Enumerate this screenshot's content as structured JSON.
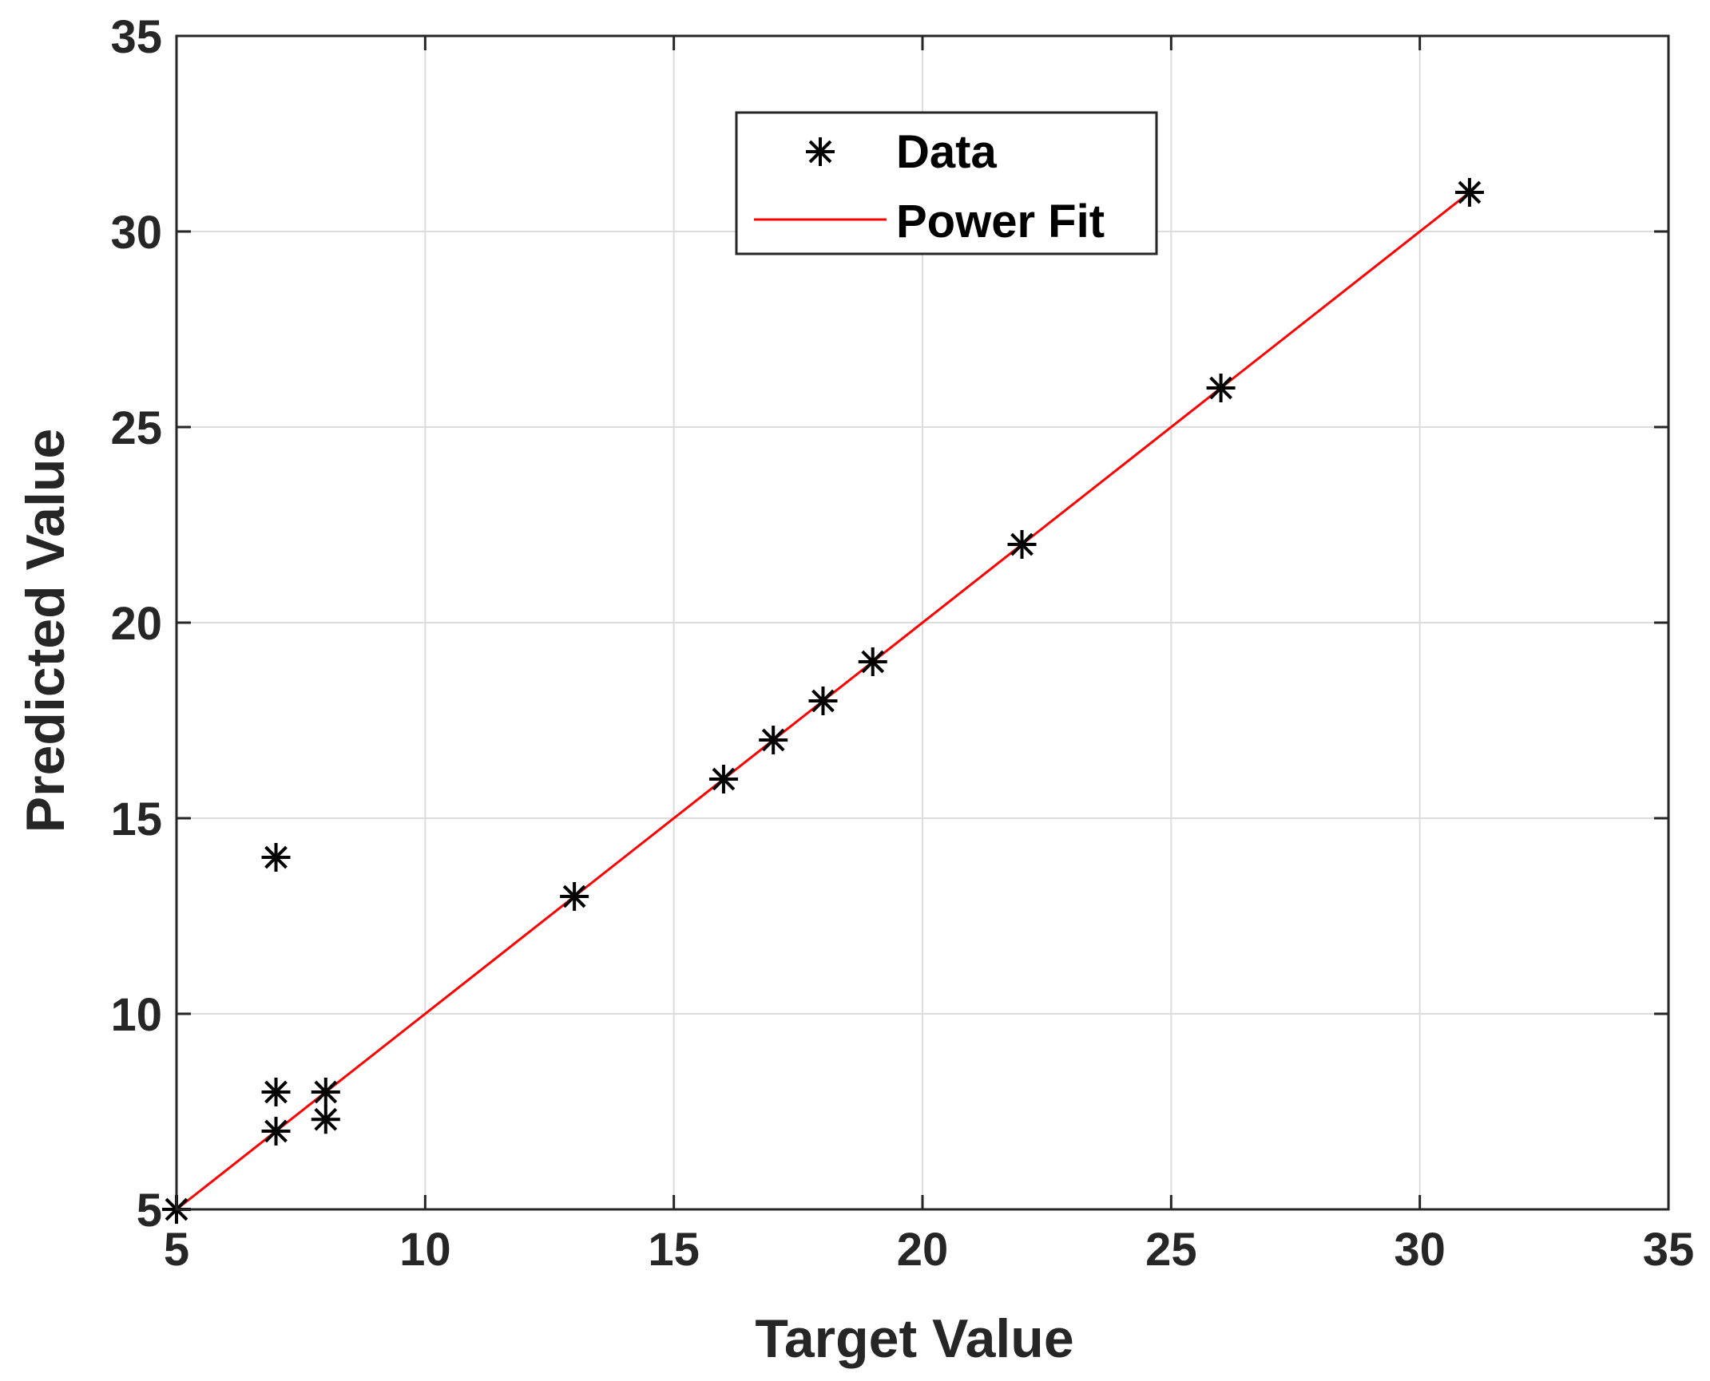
{
  "chart_data": {
    "type": "scatter",
    "xlabel": "Target Value",
    "ylabel": "Predicted Value",
    "xlim": [
      5,
      35
    ],
    "ylim": [
      5,
      35
    ],
    "xticks": [
      5,
      10,
      15,
      20,
      25,
      30,
      35
    ],
    "yticks": [
      5,
      10,
      15,
      20,
      25,
      30,
      35
    ],
    "grid": true,
    "legend_position": "top-center",
    "series": [
      {
        "name": "Data",
        "marker": "asterisk",
        "color": "#000000",
        "points": [
          {
            "x": 5,
            "y": 5
          },
          {
            "x": 7,
            "y": 7
          },
          {
            "x": 7,
            "y": 8
          },
          {
            "x": 7,
            "y": 14
          },
          {
            "x": 8,
            "y": 7.3
          },
          {
            "x": 8,
            "y": 8
          },
          {
            "x": 13,
            "y": 13
          },
          {
            "x": 16,
            "y": 16
          },
          {
            "x": 17,
            "y": 17
          },
          {
            "x": 18,
            "y": 18
          },
          {
            "x": 19,
            "y": 19
          },
          {
            "x": 22,
            "y": 22
          },
          {
            "x": 26,
            "y": 26
          },
          {
            "x": 31,
            "y": 31
          }
        ]
      },
      {
        "name": "Power Fit",
        "style": "line",
        "color": "#ff0000",
        "points": [
          {
            "x": 5,
            "y": 5
          },
          {
            "x": 31,
            "y": 31
          }
        ]
      }
    ]
  }
}
